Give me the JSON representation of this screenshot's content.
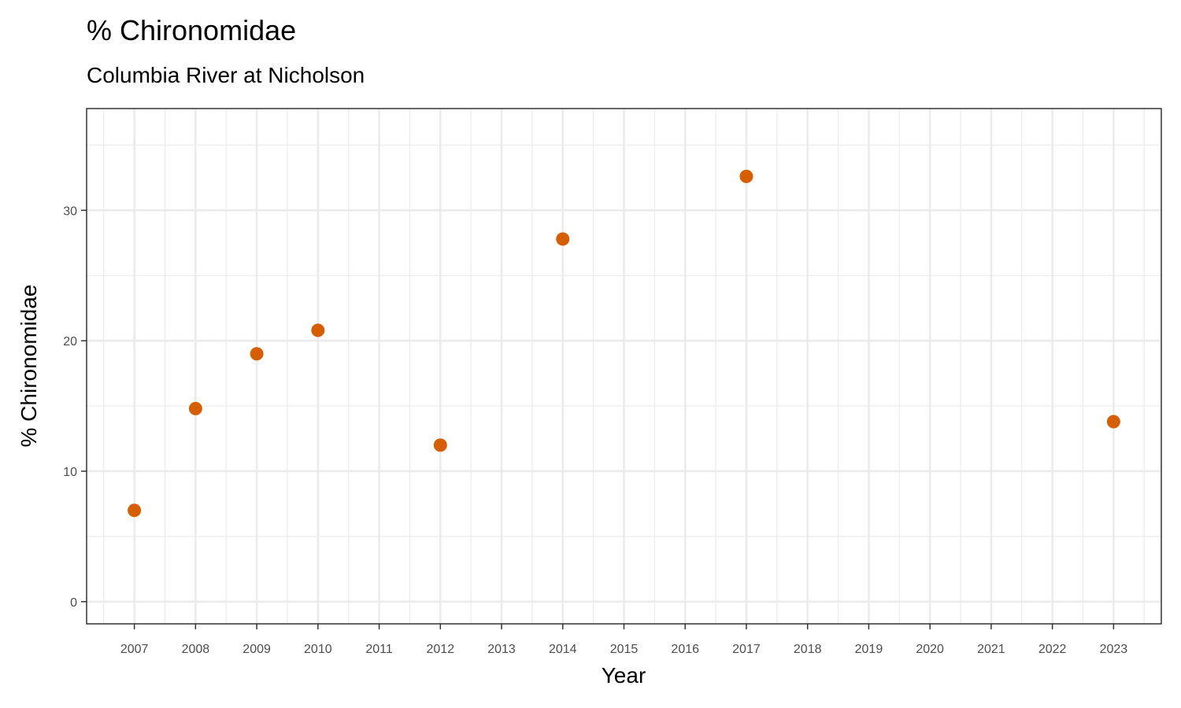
{
  "chart_data": {
    "type": "scatter",
    "title": "% Chironomidae",
    "subtitle": "Columbia River at Nicholson",
    "xlabel": "Year",
    "ylabel": "% Chironomidae",
    "x_ticks": [
      "2007",
      "2008",
      "2009",
      "2010",
      "2011",
      "2012",
      "2013",
      "2014",
      "2015",
      "2016",
      "2017",
      "2018",
      "2019",
      "2020",
      "2021",
      "2022",
      "2023"
    ],
    "y_ticks": [
      0,
      10,
      20,
      30
    ],
    "xlim": [
      2006.22,
      2023.78
    ],
    "ylim": [
      -1.7,
      37.8
    ],
    "grid": true,
    "point_color": "#D55E00",
    "points": [
      {
        "x": 2007,
        "y": 7.0
      },
      {
        "x": 2008,
        "y": 14.8
      },
      {
        "x": 2009,
        "y": 19.0
      },
      {
        "x": 2010,
        "y": 20.8
      },
      {
        "x": 2012,
        "y": 12.0
      },
      {
        "x": 2014,
        "y": 27.8
      },
      {
        "x": 2017,
        "y": 32.6
      },
      {
        "x": 2023,
        "y": 13.8
      }
    ]
  }
}
